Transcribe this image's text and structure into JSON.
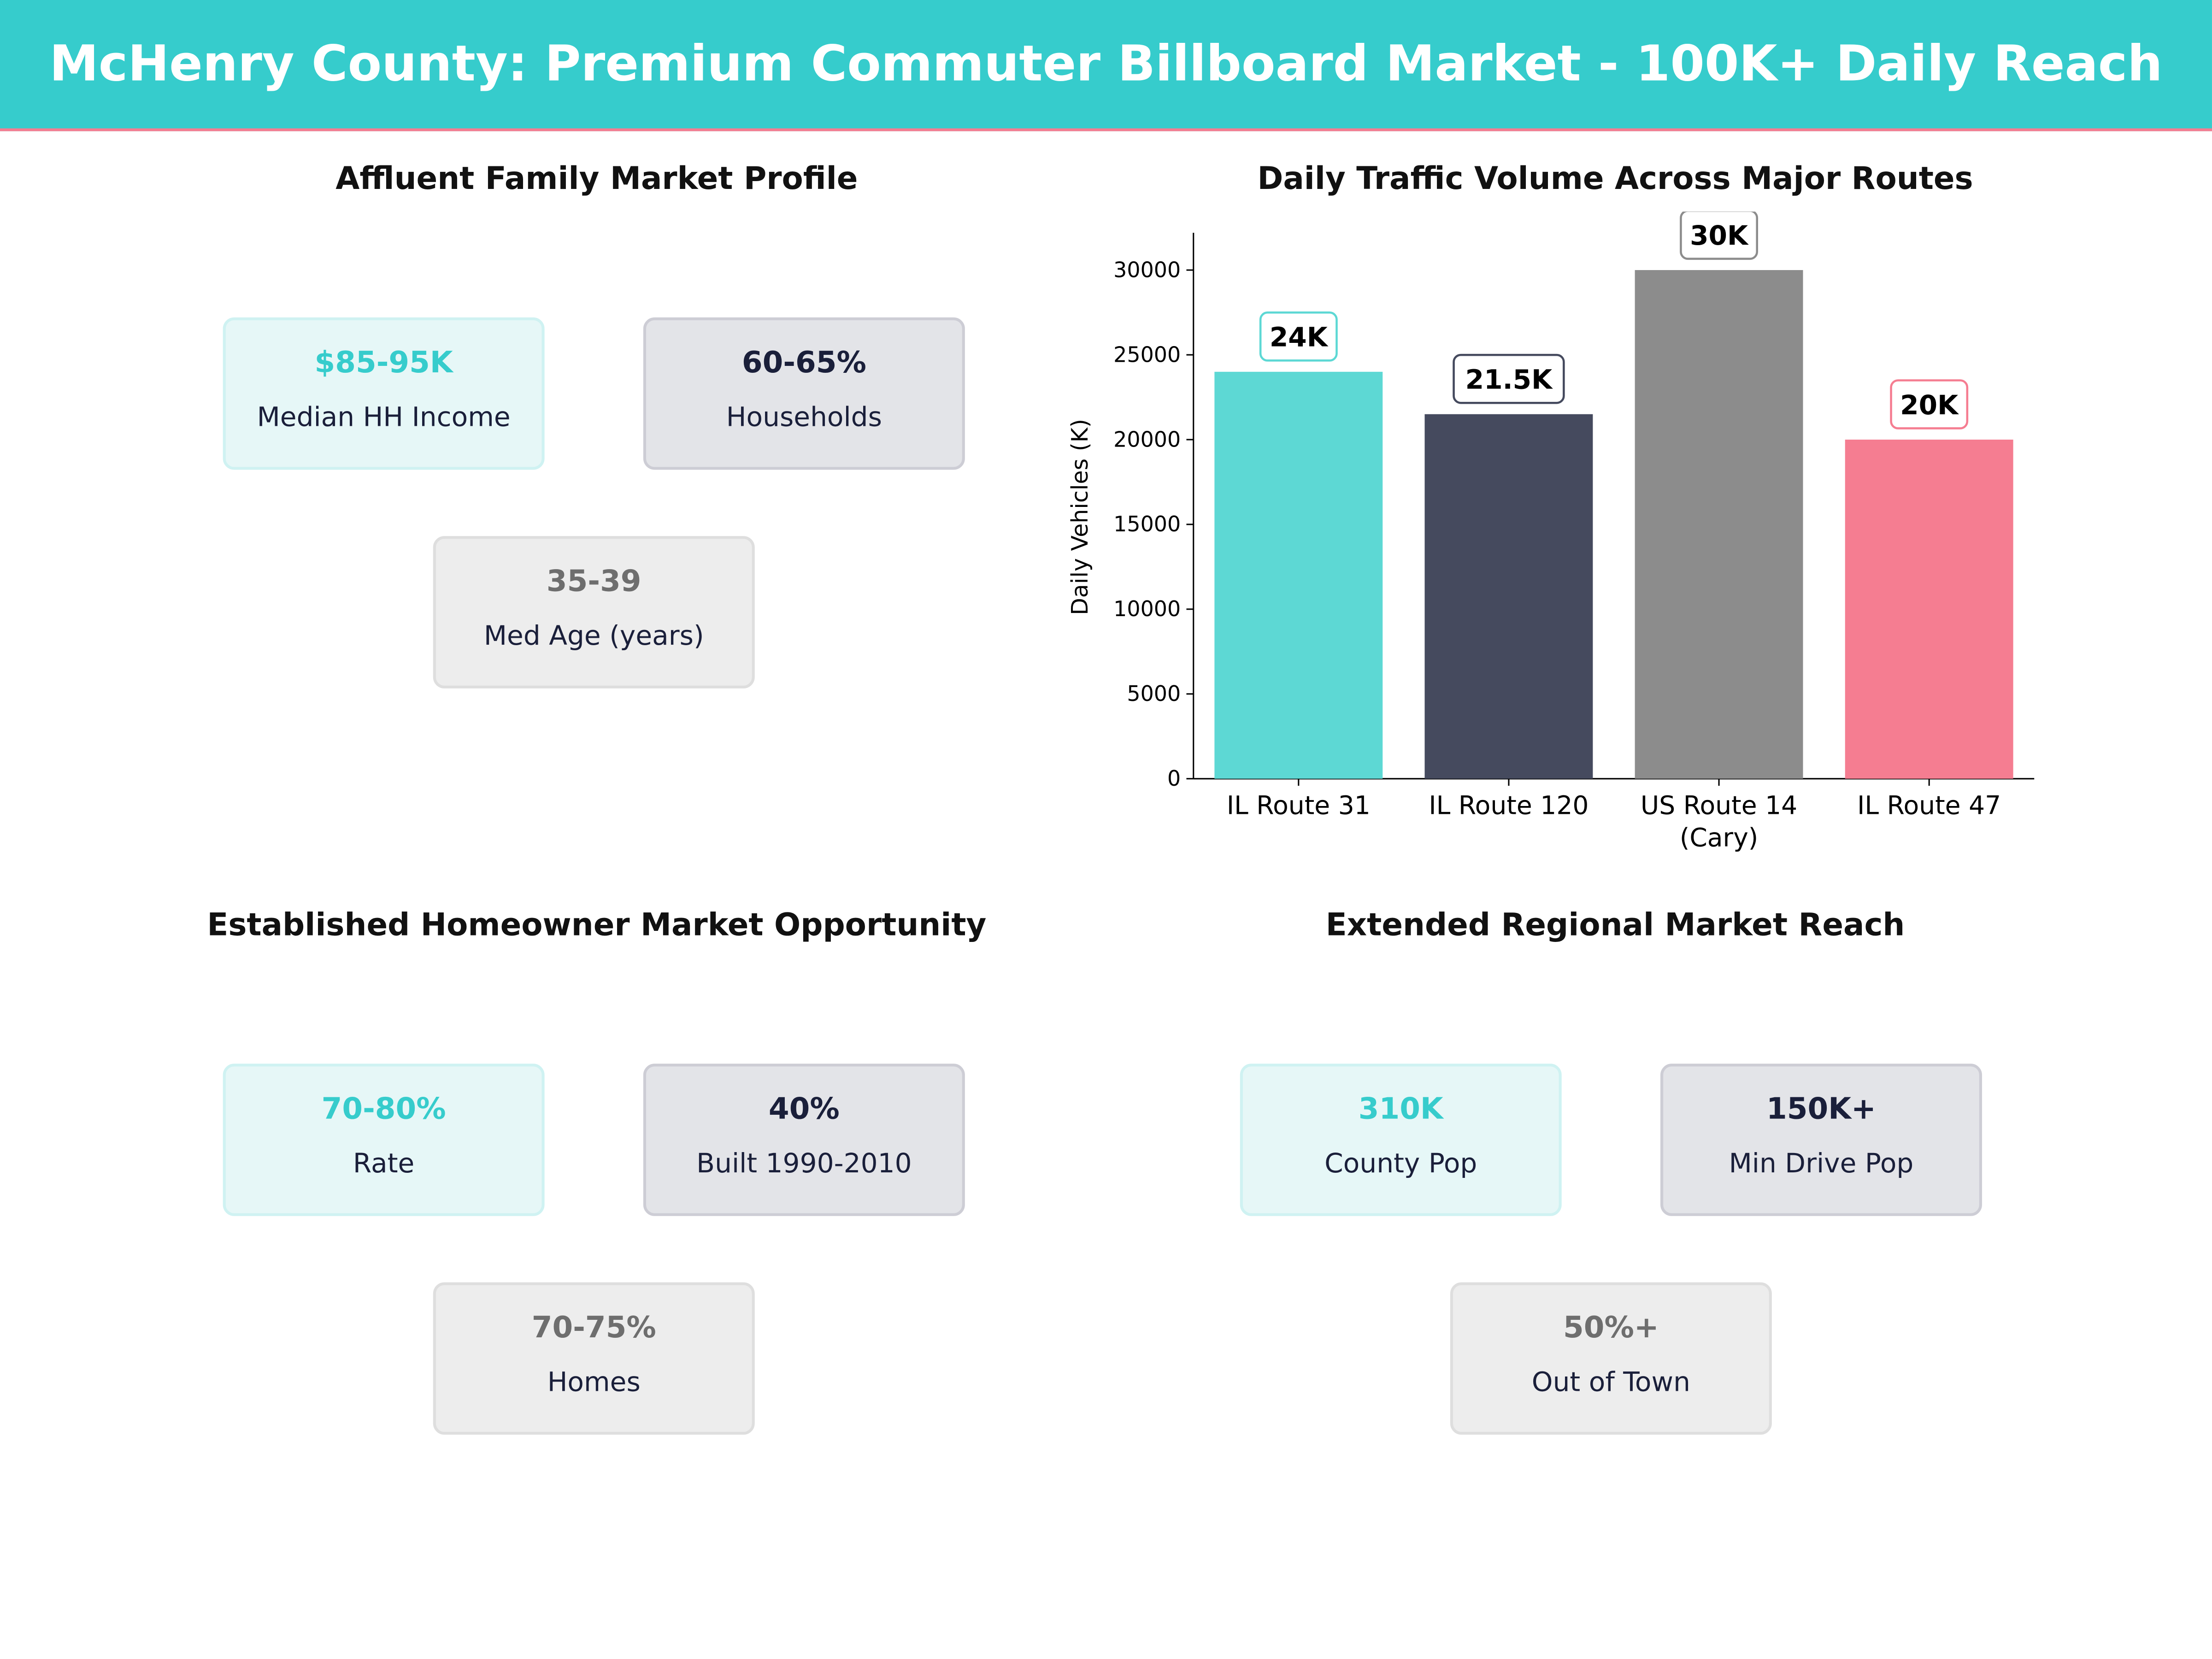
{
  "header": {
    "title": "McHenry County: Premium Commuter Billboard Market - 100K+ Daily Reach",
    "bg_color": "#36CCCC",
    "accent_line": "#F57D91"
  },
  "panels": {
    "affluent": {
      "title": "Affluent Family Market Profile",
      "cards": [
        {
          "value": "$85-95K",
          "label": "Median HH Income"
        },
        {
          "value": "60-65%",
          "label": "Households"
        },
        {
          "value": "35-39",
          "label": "Med Age (years)"
        }
      ]
    },
    "homeowner": {
      "title": "Established Homeowner Market Opportunity",
      "cards": [
        {
          "value": "70-80%",
          "label": "Rate"
        },
        {
          "value": "40%",
          "label": "Built 1990-2010"
        },
        {
          "value": "70-75%",
          "label": "Homes"
        }
      ]
    },
    "regional": {
      "title": "Extended Regional Market Reach",
      "cards": [
        {
          "value": "310K",
          "label": "County Pop"
        },
        {
          "value": "150K+",
          "label": "Min Drive Pop"
        },
        {
          "value": "50%+",
          "label": "Out of Town"
        }
      ]
    }
  },
  "chart_data": {
    "type": "bar",
    "title": "Daily Traffic Volume Across Major Routes",
    "xlabel": "",
    "ylabel": "Daily Vehicles (K)",
    "categories": [
      "IL Route 31",
      "IL Route 120",
      "US Route 14\n(Cary)",
      "IL Route 47"
    ],
    "values": [
      24000,
      21500,
      30000,
      20000
    ],
    "data_labels": [
      "24K",
      "21.5K",
      "30K",
      "20K"
    ],
    "colors": [
      "#5DD8D4",
      "#454A5E",
      "#8C8C8C",
      "#F57D91"
    ],
    "ylim": [
      0,
      32200
    ],
    "yticks": [
      0,
      5000,
      10000,
      15000,
      20000,
      25000,
      30000
    ],
    "grid": false
  }
}
